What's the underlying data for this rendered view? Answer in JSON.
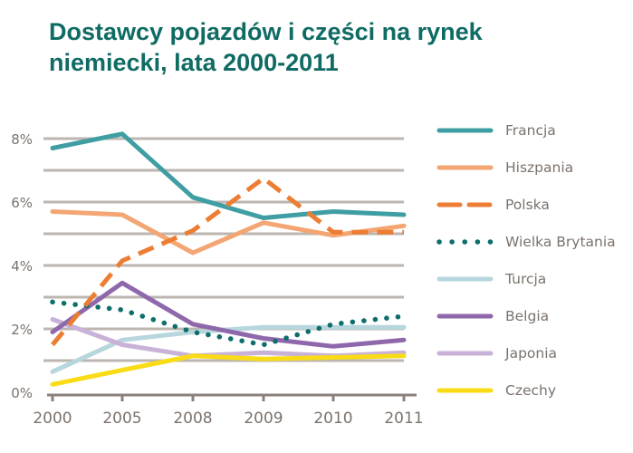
{
  "title": {
    "line1": "Dostawcy pojazdów i części na rynek",
    "line2": "niemiecki, lata 2000-2011"
  },
  "colors": {
    "title": "#0f6b63",
    "grid": "#bdb6b0",
    "axis": "#8a817b",
    "label": "#7b726c"
  },
  "chart_data": {
    "type": "line",
    "title": "Dostawcy pojazdów i części na rynek niemiecki, lata 2000-2011",
    "xlabel": "",
    "ylabel": "",
    "categories": [
      "2000",
      "2005",
      "2008",
      "2009",
      "2010",
      "2011"
    ],
    "y_ticks": [
      "0%",
      "2%",
      "4%",
      "6%",
      "8%"
    ],
    "ylim": [
      0,
      9
    ],
    "grid": true,
    "legend_position": "right",
    "series": [
      {
        "name": "Francja",
        "color": "#3f9ea3",
        "style": "solid",
        "values": [
          7.7,
          8.15,
          6.15,
          5.5,
          5.7,
          5.6
        ]
      },
      {
        "name": "Hiszpania",
        "color": "#f3a673",
        "style": "solid",
        "values": [
          5.7,
          5.6,
          4.4,
          5.35,
          4.95,
          5.25
        ]
      },
      {
        "name": "Polska",
        "color": "#ec7d33",
        "style": "dashed",
        "values": [
          1.5,
          4.15,
          5.1,
          6.75,
          5.05,
          5.05
        ]
      },
      {
        "name": "Wielka Brytania",
        "color": "#0d6e6b",
        "style": "dotted",
        "values": [
          2.85,
          2.6,
          1.9,
          1.5,
          2.15,
          2.4
        ]
      },
      {
        "name": "Turcja",
        "color": "#b7d6dd",
        "style": "solid",
        "values": [
          0.65,
          1.65,
          1.9,
          2.05,
          2.05,
          2.05
        ]
      },
      {
        "name": "Belgia",
        "color": "#8f68ab",
        "style": "solid",
        "values": [
          1.9,
          3.45,
          2.15,
          1.7,
          1.45,
          1.65
        ]
      },
      {
        "name": "Japonia",
        "color": "#c8b2d8",
        "style": "solid",
        "values": [
          2.3,
          1.5,
          1.15,
          1.25,
          1.15,
          1.25
        ]
      },
      {
        "name": "Czechy",
        "color": "#f9dc16",
        "style": "solid",
        "values": [
          0.25,
          0.7,
          1.15,
          1.05,
          1.1,
          1.15
        ]
      }
    ]
  },
  "legend": [
    {
      "label": "Francja"
    },
    {
      "label": "Hiszpania"
    },
    {
      "label": "Polska"
    },
    {
      "label": "Wielka Brytania"
    },
    {
      "label": "Turcja"
    },
    {
      "label": "Belgia"
    },
    {
      "label": "Japonia"
    },
    {
      "label": "Czechy"
    }
  ]
}
